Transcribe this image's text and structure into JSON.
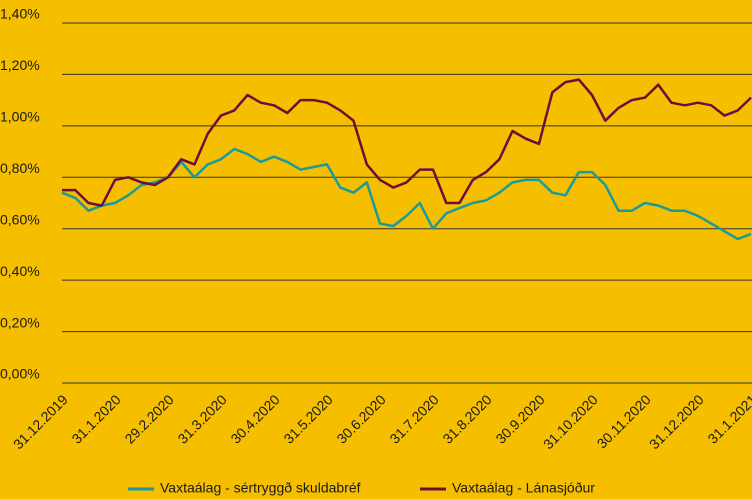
{
  "chart_data": {
    "type": "line",
    "categories": [
      "31.12.2019",
      null,
      null,
      null,
      "31.1.2020",
      null,
      null,
      null,
      "29.2.2020",
      null,
      null,
      null,
      "31.3.2020",
      null,
      null,
      null,
      "30.4.2020",
      null,
      null,
      null,
      "31.5.2020",
      null,
      null,
      null,
      "30.6.2020",
      null,
      null,
      null,
      "31.7.2020",
      null,
      null,
      null,
      "31.8.2020",
      null,
      null,
      null,
      "30.9.2020",
      null,
      null,
      null,
      "31.10.2020",
      null,
      null,
      null,
      "30.11.2020",
      null,
      null,
      null,
      "31.12.2020",
      null,
      null,
      null,
      "31.1.2021"
    ],
    "series": [
      {
        "name": "Vaxtaálag - sértryggð skuldabréf",
        "color": "#1b9a9b",
        "values": [
          0.74,
          0.72,
          0.67,
          0.69,
          0.7,
          0.73,
          0.77,
          0.78,
          0.8,
          0.86,
          0.8,
          0.85,
          0.87,
          0.91,
          0.89,
          0.86,
          0.88,
          0.86,
          0.83,
          0.84,
          0.85,
          0.76,
          0.74,
          0.78,
          0.62,
          0.61,
          0.65,
          0.7,
          0.6,
          0.66,
          0.68,
          0.7,
          0.71,
          0.74,
          0.78,
          0.79,
          0.79,
          0.74,
          0.73,
          0.82,
          0.82,
          0.77,
          0.67,
          0.67,
          0.7,
          0.69,
          0.67,
          0.67,
          0.65,
          0.62,
          0.59,
          0.56,
          0.58
        ]
      },
      {
        "name": "Vaxtaálag - Lánasjóður",
        "color": "#6e0e3c",
        "values": [
          0.75,
          0.75,
          0.7,
          0.69,
          0.79,
          0.8,
          0.78,
          0.77,
          0.8,
          0.87,
          0.85,
          0.97,
          1.04,
          1.06,
          1.12,
          1.09,
          1.08,
          1.05,
          1.1,
          1.1,
          1.09,
          1.06,
          1.02,
          0.85,
          0.79,
          0.76,
          0.78,
          0.83,
          0.83,
          0.7,
          0.7,
          0.79,
          0.82,
          0.87,
          0.98,
          0.95,
          0.93,
          1.13,
          1.17,
          1.18,
          1.12,
          1.02,
          1.07,
          1.1,
          1.11,
          1.16,
          1.09,
          1.08,
          1.09,
          1.08,
          1.04,
          1.06,
          1.11
        ]
      }
    ],
    "ylim": [
      0,
      1.4
    ],
    "yticks": [
      {
        "value": 0,
        "label": "0,00%"
      },
      {
        "value": 0.2,
        "label": "0,20%"
      },
      {
        "value": 0.4,
        "label": "0,40%"
      },
      {
        "value": 0.6,
        "label": "0,60%"
      },
      {
        "value": 0.8,
        "label": "0,80%"
      },
      {
        "value": 1.0,
        "label": "1,00%"
      },
      {
        "value": 1.2,
        "label": "1,20%"
      },
      {
        "value": 1.4,
        "label": "1,40%"
      }
    ],
    "grid": true
  }
}
